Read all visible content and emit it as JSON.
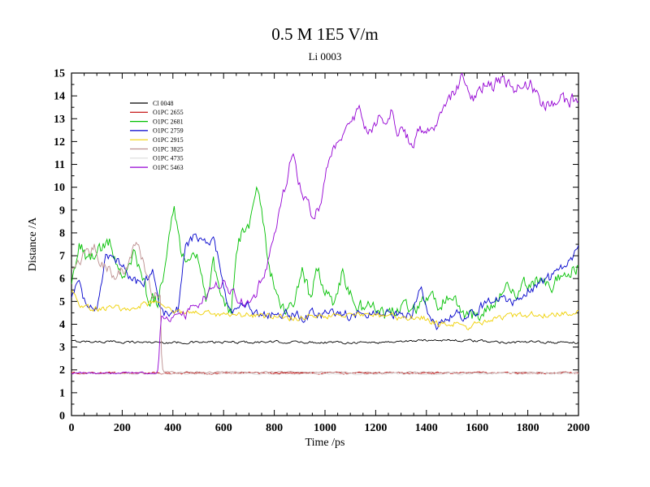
{
  "chart_data": {
    "type": "line",
    "title": "0.5 M 1E5 V/m",
    "subtitle": "Li 0003",
    "xlabel": "Time /ps",
    "ylabel": "Distance /A",
    "xlim": [
      0,
      2000
    ],
    "ylim": [
      0,
      15
    ],
    "x_major_tick": 200,
    "x_minor_tick": 50,
    "y_major_tick": 1,
    "y_minor_tick": 0.5,
    "grid": false,
    "legend_position": "top-left-inside",
    "series": [
      {
        "name": "Cl 0048",
        "color": "#000000",
        "noise": 0.05,
        "keypoints": [
          [
            0,
            3.25
          ],
          [
            400,
            3.2
          ],
          [
            800,
            3.22
          ],
          [
            1200,
            3.2
          ],
          [
            1450,
            3.32
          ],
          [
            1700,
            3.22
          ],
          [
            2000,
            3.2
          ]
        ]
      },
      {
        "name": "O1PC 2655",
        "color": "#c00000",
        "noise": 0.04,
        "keypoints": [
          [
            0,
            1.86
          ],
          [
            2000,
            1.86
          ]
        ]
      },
      {
        "name": "O1PC 2681",
        "color": "#00c000",
        "noise": 0.3,
        "keypoints": [
          [
            0,
            5.9
          ],
          [
            30,
            7.5
          ],
          [
            70,
            6.8
          ],
          [
            110,
            7.4
          ],
          [
            150,
            7.5
          ],
          [
            200,
            6.3
          ],
          [
            250,
            7.1
          ],
          [
            300,
            5.2
          ],
          [
            340,
            5.0
          ],
          [
            370,
            6.6
          ],
          [
            405,
            9.0
          ],
          [
            430,
            7.4
          ],
          [
            460,
            6.6
          ],
          [
            500,
            6.9
          ],
          [
            530,
            5.2
          ],
          [
            560,
            6.7
          ],
          [
            600,
            4.7
          ],
          [
            630,
            4.6
          ],
          [
            660,
            7.9
          ],
          [
            700,
            8.1
          ],
          [
            730,
            9.7
          ],
          [
            750,
            9.0
          ],
          [
            780,
            6.3
          ],
          [
            810,
            5.4
          ],
          [
            840,
            4.7
          ],
          [
            880,
            5.0
          ],
          [
            910,
            6.4
          ],
          [
            940,
            5.2
          ],
          [
            970,
            6.4
          ],
          [
            1000,
            5.5
          ],
          [
            1030,
            5.0
          ],
          [
            1070,
            6.3
          ],
          [
            1110,
            5.0
          ],
          [
            1150,
            4.7
          ],
          [
            1200,
            4.8
          ],
          [
            1250,
            4.4
          ],
          [
            1300,
            4.9
          ],
          [
            1350,
            4.6
          ],
          [
            1400,
            5.2
          ],
          [
            1450,
            4.9
          ],
          [
            1500,
            5.2
          ],
          [
            1550,
            4.3
          ],
          [
            1600,
            4.4
          ],
          [
            1650,
            4.7
          ],
          [
            1700,
            5.6
          ],
          [
            1750,
            5.3
          ],
          [
            1800,
            5.8
          ],
          [
            1850,
            5.9
          ],
          [
            1900,
            5.7
          ],
          [
            1950,
            6.3
          ],
          [
            2000,
            6.5
          ]
        ]
      },
      {
        "name": "O1PC 2759",
        "color": "#0000cc",
        "noise": 0.22,
        "keypoints": [
          [
            0,
            5.2
          ],
          [
            25,
            6.1
          ],
          [
            60,
            4.7
          ],
          [
            100,
            4.8
          ],
          [
            135,
            6.9
          ],
          [
            160,
            7.1
          ],
          [
            200,
            6.5
          ],
          [
            240,
            5.9
          ],
          [
            280,
            5.7
          ],
          [
            320,
            6.2
          ],
          [
            350,
            4.6
          ],
          [
            390,
            4.3
          ],
          [
            420,
            4.6
          ],
          [
            450,
            7.5
          ],
          [
            480,
            7.8
          ],
          [
            520,
            7.5
          ],
          [
            560,
            7.8
          ],
          [
            590,
            6.4
          ],
          [
            615,
            5.0
          ],
          [
            640,
            4.6
          ],
          [
            680,
            4.8
          ],
          [
            720,
            4.6
          ],
          [
            760,
            4.4
          ],
          [
            800,
            4.4
          ],
          [
            850,
            4.5
          ],
          [
            900,
            4.3
          ],
          [
            950,
            4.4
          ],
          [
            1000,
            4.5
          ],
          [
            1050,
            4.4
          ],
          [
            1100,
            4.4
          ],
          [
            1150,
            4.5
          ],
          [
            1200,
            4.4
          ],
          [
            1250,
            4.5
          ],
          [
            1300,
            4.5
          ],
          [
            1340,
            4.3
          ],
          [
            1380,
            5.5
          ],
          [
            1410,
            4.4
          ],
          [
            1440,
            3.9
          ],
          [
            1480,
            4.3
          ],
          [
            1520,
            4.5
          ],
          [
            1560,
            4.4
          ],
          [
            1600,
            4.7
          ],
          [
            1650,
            4.9
          ],
          [
            1700,
            5.1
          ],
          [
            1750,
            5.0
          ],
          [
            1800,
            5.5
          ],
          [
            1850,
            5.8
          ],
          [
            1900,
            6.1
          ],
          [
            1950,
            6.6
          ],
          [
            2000,
            7.4
          ]
        ]
      },
      {
        "name": "O1PC 2915",
        "color": "#efd000",
        "noise": 0.13,
        "keypoints": [
          [
            0,
            5.5
          ],
          [
            40,
            4.8
          ],
          [
            100,
            4.7
          ],
          [
            200,
            4.7
          ],
          [
            300,
            4.9
          ],
          [
            360,
            4.9
          ],
          [
            420,
            4.5
          ],
          [
            500,
            4.5
          ],
          [
            600,
            4.4
          ],
          [
            700,
            4.4
          ],
          [
            800,
            4.3
          ],
          [
            900,
            4.3
          ],
          [
            1000,
            4.4
          ],
          [
            1100,
            4.4
          ],
          [
            1200,
            4.4
          ],
          [
            1300,
            4.3
          ],
          [
            1380,
            4.3
          ],
          [
            1450,
            4.0
          ],
          [
            1520,
            4.1
          ],
          [
            1560,
            3.9
          ],
          [
            1620,
            4.1
          ],
          [
            1700,
            4.3
          ],
          [
            1800,
            4.4
          ],
          [
            1900,
            4.4
          ],
          [
            2000,
            4.5
          ]
        ]
      },
      {
        "name": "O1PC 3825",
        "color": "#bc8f8f",
        "noise": [
          [
            0,
            0.25
          ],
          [
            350,
            0.25
          ],
          [
            362,
            0.03
          ],
          [
            2000,
            0.03
          ]
        ],
        "keypoints": [
          [
            0,
            6.2
          ],
          [
            40,
            6.9
          ],
          [
            90,
            7.3
          ],
          [
            130,
            6.6
          ],
          [
            170,
            6.1
          ],
          [
            210,
            6.4
          ],
          [
            250,
            7.5
          ],
          [
            280,
            6.9
          ],
          [
            310,
            5.5
          ],
          [
            335,
            5.2
          ],
          [
            350,
            5.0
          ],
          [
            356,
            2.0
          ],
          [
            365,
            1.9
          ],
          [
            2000,
            1.88
          ]
        ]
      },
      {
        "name": "O1PC 4735",
        "color": "#dcdcdc",
        "noise": 0.035,
        "keypoints": [
          [
            0,
            1.83
          ],
          [
            2000,
            1.83
          ]
        ]
      },
      {
        "name": "O1PC 5463",
        "color": "#9400d3",
        "noise": [
          [
            0,
            0.04
          ],
          [
            340,
            0.04
          ],
          [
            360,
            0.18
          ],
          [
            700,
            0.25
          ],
          [
            2000,
            0.3
          ]
        ],
        "keypoints": [
          [
            0,
            1.86
          ],
          [
            338,
            1.86
          ],
          [
            344,
            2.3
          ],
          [
            352,
            4.3
          ],
          [
            400,
            4.4
          ],
          [
            450,
            4.4
          ],
          [
            500,
            4.9
          ],
          [
            550,
            5.5
          ],
          [
            600,
            5.9
          ],
          [
            640,
            5.3
          ],
          [
            690,
            5.0
          ],
          [
            730,
            5.3
          ],
          [
            770,
            6.6
          ],
          [
            800,
            8.2
          ],
          [
            830,
            9.4
          ],
          [
            860,
            10.9
          ],
          [
            880,
            11.2
          ],
          [
            905,
            9.9
          ],
          [
            930,
            9.4
          ],
          [
            955,
            8.7
          ],
          [
            980,
            9.3
          ],
          [
            1005,
            10.6
          ],
          [
            1030,
            11.5
          ],
          [
            1055,
            11.9
          ],
          [
            1080,
            12.3
          ],
          [
            1105,
            12.9
          ],
          [
            1135,
            13.5
          ],
          [
            1165,
            12.5
          ],
          [
            1190,
            12.6
          ],
          [
            1215,
            13.3
          ],
          [
            1240,
            13.0
          ],
          [
            1265,
            13.4
          ],
          [
            1290,
            12.3
          ],
          [
            1315,
            12.5
          ],
          [
            1340,
            11.9
          ],
          [
            1365,
            12.3
          ],
          [
            1395,
            12.6
          ],
          [
            1425,
            12.7
          ],
          [
            1455,
            13.1
          ],
          [
            1480,
            13.6
          ],
          [
            1505,
            14.1
          ],
          [
            1535,
            14.7
          ],
          [
            1555,
            14.8
          ],
          [
            1580,
            13.9
          ],
          [
            1605,
            14.1
          ],
          [
            1630,
            14.6
          ],
          [
            1655,
            14.3
          ],
          [
            1680,
            14.6
          ],
          [
            1705,
            14.8
          ],
          [
            1730,
            14.4
          ],
          [
            1760,
            14.4
          ],
          [
            1790,
            14.5
          ],
          [
            1815,
            14.5
          ],
          [
            1840,
            13.9
          ],
          [
            1870,
            13.6
          ],
          [
            1900,
            13.5
          ],
          [
            1930,
            13.8
          ],
          [
            1960,
            13.7
          ],
          [
            2000,
            13.9
          ]
        ]
      }
    ]
  }
}
